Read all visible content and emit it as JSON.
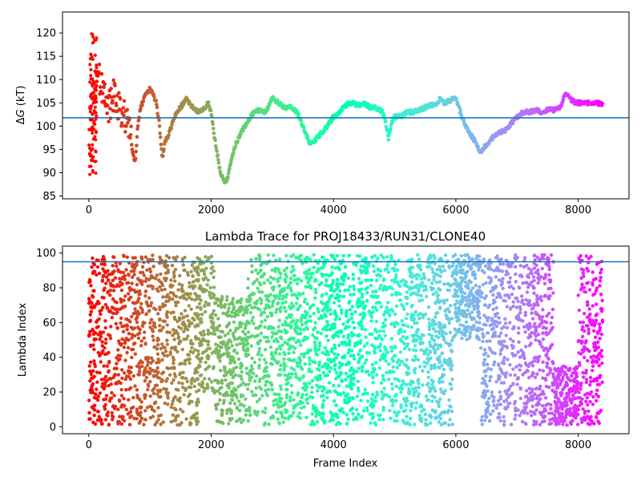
{
  "chart_data": [
    {
      "type": "scatter",
      "title": "",
      "xlabel": "",
      "ylabel_italic": "G",
      "ylabel_prefix": "Δ",
      "ylabel_suffix": " (kT)",
      "xlim": [
        -430,
        8830
      ],
      "ylim": [
        84.4,
        124.5
      ],
      "xticks": [
        0,
        2000,
        4000,
        6000,
        8000
      ],
      "yticks": [
        85,
        90,
        95,
        100,
        105,
        110,
        115,
        120
      ],
      "hline": 101.8,
      "hline_color": "#1f77b4",
      "colormap": "rainbow",
      "color_by": "x",
      "x_count": 8400,
      "grid": false,
      "trace_keypoints": {
        "x": [
          0,
          40,
          80,
          140,
          200,
          260,
          330,
          400,
          500,
          580,
          660,
          720,
          760,
          800,
          850,
          900,
          950,
          1000,
          1050,
          1100,
          1150,
          1200,
          1250,
          1300,
          1400,
          1500,
          1600,
          1700,
          1800,
          1900,
          1950,
          2000,
          2050,
          2100,
          2150,
          2200,
          2250,
          2300,
          2400,
          2500,
          2600,
          2700,
          2800,
          2900,
          3000,
          3100,
          3200,
          3300,
          3400,
          3500,
          3600,
          3700,
          3800,
          3900,
          4000,
          4100,
          4200,
          4300,
          4400,
          4500,
          4600,
          4700,
          4800,
          4850,
          4900,
          4950,
          5000,
          5100,
          5200,
          5300,
          5400,
          5500,
          5600,
          5700,
          5750,
          5800,
          5900,
          6000,
          6100,
          6200,
          6300,
          6400,
          6500,
          6600,
          6700,
          6800,
          6900,
          7000,
          7100,
          7200,
          7300,
          7400,
          7500,
          7600,
          7700,
          7800,
          7850,
          7900,
          7950,
          8000,
          8100,
          8200,
          8300,
          8400
        ],
        "y": [
          101,
          104,
          107,
          111,
          109,
          106,
          104,
          107,
          104,
          102,
          100,
          94,
          92.5,
          100,
          104,
          106,
          107,
          108,
          107,
          105,
          101,
          93,
          97,
          98,
          102,
          104,
          106,
          104,
          103,
          104,
          105,
          103,
          98,
          94,
          90,
          88.5,
          88,
          91,
          96,
          99,
          101,
          103,
          103.5,
          103,
          106,
          105,
          104,
          104,
          103,
          100,
          96.5,
          97,
          98.5,
          100,
          102,
          103,
          104.5,
          105,
          104.5,
          105,
          104,
          104,
          103,
          101,
          97.5,
          101,
          102,
          102,
          103,
          103,
          103.5,
          104,
          104.5,
          105,
          106,
          105,
          105.5,
          106,
          102,
          99,
          97,
          94.5,
          96,
          97.5,
          98.5,
          99,
          100.5,
          102,
          103,
          103,
          103.5,
          103,
          103.5,
          103.5,
          104,
          107,
          106,
          105.5,
          105,
          105,
          105,
          105,
          105,
          104.5
        ]
      },
      "early_scatter": {
        "x_range": [
          0,
          130
        ],
        "y_range": [
          88.8,
          120
        ]
      }
    },
    {
      "type": "scatter",
      "title": "Lambda Trace for PROJ18433/RUN31/CLONE40",
      "xlabel": "Frame Index",
      "ylabel": "Lambda Index",
      "xlim": [
        -430,
        8830
      ],
      "ylim": [
        -4,
        104
      ],
      "xticks": [
        0,
        2000,
        4000,
        6000,
        8000
      ],
      "yticks": [
        0,
        20,
        40,
        60,
        80,
        100
      ],
      "hline": 95,
      "hline_color": "#1f77b4",
      "colormap": "rainbow",
      "color_by": "x",
      "grid": false,
      "value_range": [
        1,
        99
      ],
      "density_profile": {
        "segments": [
          {
            "x": [
              0,
              40
            ],
            "y_range": [
              1,
              92
            ]
          },
          {
            "x": [
              40,
              700
            ],
            "y_range": [
              1,
              99
            ]
          },
          {
            "x": [
              700,
              1000
            ],
            "y_range": [
              1,
              99
            ]
          },
          {
            "x": [
              1000,
              1250
            ],
            "y_range": [
              1,
              99
            ]
          },
          {
            "x": [
              1250,
              1800
            ],
            "y_range": [
              1,
              99
            ]
          },
          {
            "x": [
              1800,
              2050
            ],
            "y_range": [
              20,
              99
            ]
          },
          {
            "x": [
              2050,
              2600
            ],
            "y_range": [
              1,
              75
            ]
          },
          {
            "x": [
              2600,
              3300
            ],
            "y_range": [
              1,
              99
            ]
          },
          {
            "x": [
              3300,
              3600
            ],
            "y_range": [
              5,
              99
            ]
          },
          {
            "x": [
              3600,
              4950
            ],
            "y_range": [
              1,
              99
            ]
          },
          {
            "x": [
              4950,
              5950
            ],
            "y_range": [
              1,
              99
            ]
          },
          {
            "x": [
              5950,
              6400
            ],
            "y_range": [
              50,
              99
            ]
          },
          {
            "x": [
              6400,
              7600
            ],
            "y_range": [
              1,
              99
            ]
          },
          {
            "x": [
              7600,
              8000
            ],
            "y_range": [
              1,
              35
            ]
          },
          {
            "x": [
              8000,
              8400
            ],
            "y_range": [
              1,
              99
            ]
          }
        ]
      }
    }
  ]
}
